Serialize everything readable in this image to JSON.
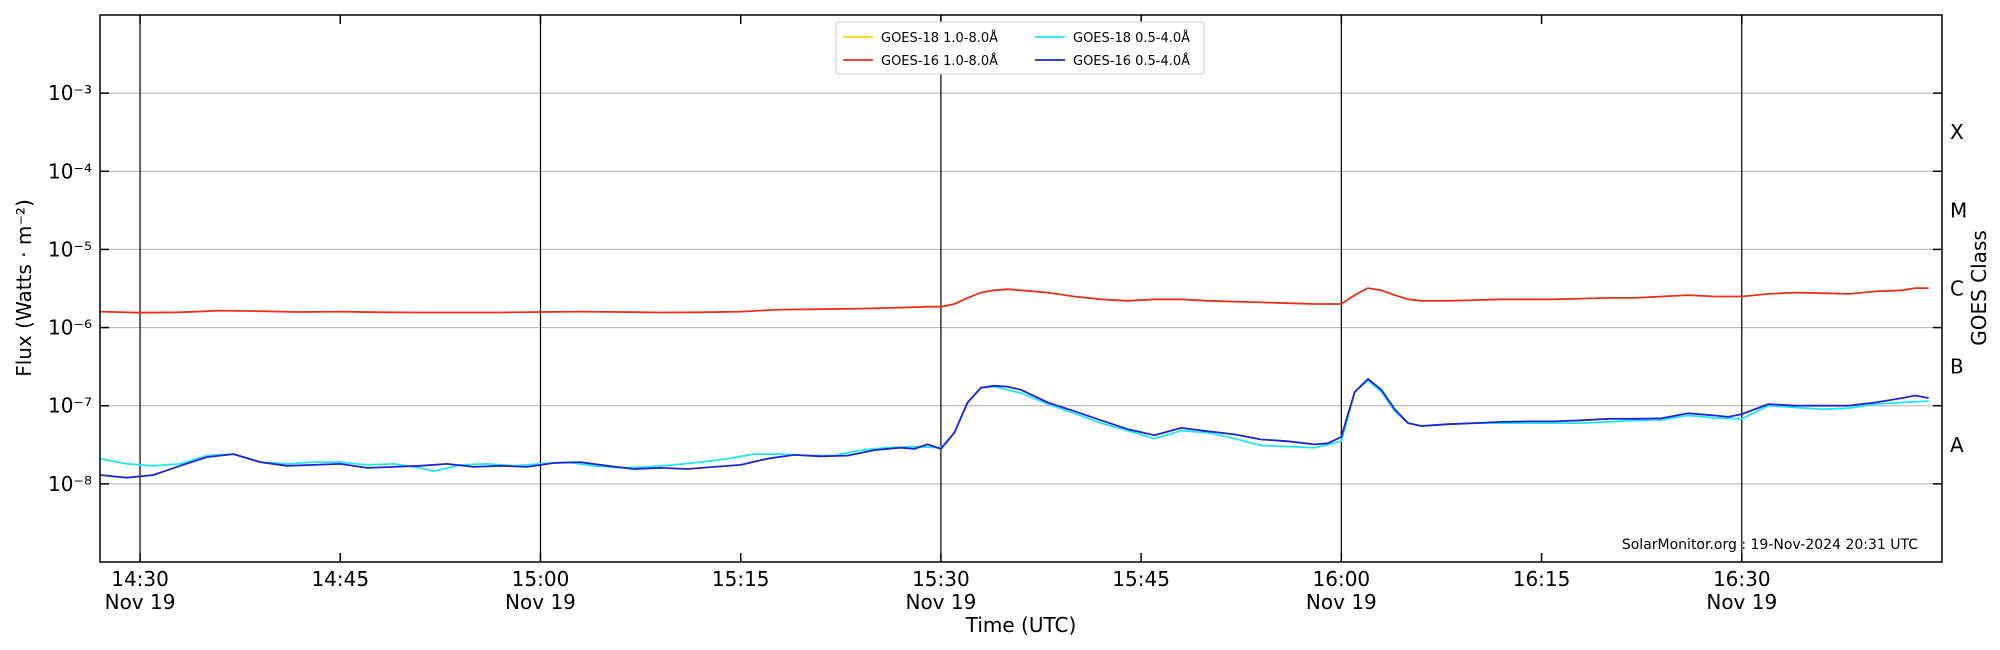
{
  "chart_data": {
    "type": "line",
    "xlabel": "Time (UTC)",
    "ylabel": "Flux (Watts · m⁻²)",
    "y2label": "GOES Class",
    "yscale": "log",
    "ylim": [
      1e-09,
      0.01
    ],
    "xlim_minutes": [
      "14:27",
      "16:45"
    ],
    "x_ticks": [
      {
        "time": "14:30",
        "date": "Nov 19"
      },
      {
        "time": "14:45",
        "date": ""
      },
      {
        "time": "15:00",
        "date": "Nov 19"
      },
      {
        "time": "15:15",
        "date": ""
      },
      {
        "time": "15:30",
        "date": "Nov 19"
      },
      {
        "time": "15:45",
        "date": ""
      },
      {
        "time": "16:00",
        "date": "Nov 19"
      },
      {
        "time": "16:15",
        "date": ""
      },
      {
        "time": "16:30",
        "date": "Nov 19"
      }
    ],
    "y_ticks": [
      {
        "value": 1e-08,
        "label": "10⁻⁸"
      },
      {
        "value": 1e-07,
        "label": "10⁻⁷"
      },
      {
        "value": 1e-06,
        "label": "10⁻⁶"
      },
      {
        "value": 1e-05,
        "label": "10⁻⁵"
      },
      {
        "value": 0.0001,
        "label": "10⁻⁴"
      },
      {
        "value": 0.001,
        "label": "10⁻³"
      }
    ],
    "goes_classes": [
      {
        "label": "A",
        "value": 3.16e-08
      },
      {
        "label": "B",
        "value": 3.16e-07
      },
      {
        "label": "C",
        "value": 3.16e-06
      },
      {
        "label": "M",
        "value": 3.16e-05
      },
      {
        "label": "X",
        "value": 0.000316
      }
    ],
    "vlines": [
      "14:30",
      "15:00",
      "15:30",
      "16:00",
      "16:30"
    ],
    "grid": true,
    "legend_position": "top-center",
    "series": [
      {
        "name": "GOES-18 1.0-8.0Å",
        "color": "#ffd700",
        "x": [],
        "y": []
      },
      {
        "name": "GOES-16 1.0-8.0Å",
        "color": "#e8301c",
        "x": [
          "14:27",
          "14:30",
          "14:33",
          "14:36",
          "14:39",
          "14:42",
          "14:45",
          "14:48",
          "14:51",
          "14:54",
          "14:57",
          "15:00",
          "15:03",
          "15:06",
          "15:09",
          "15:12",
          "15:15",
          "15:18",
          "15:21",
          "15:24",
          "15:27",
          "15:29",
          "15:30",
          "15:31",
          "15:32",
          "15:33",
          "15:34",
          "15:35",
          "15:36",
          "15:38",
          "15:40",
          "15:42",
          "15:44",
          "15:46",
          "15:48",
          "15:50",
          "15:52",
          "15:54",
          "15:56",
          "15:58",
          "16:00",
          "16:01",
          "16:02",
          "16:03",
          "16:04",
          "16:05",
          "16:06",
          "16:08",
          "16:10",
          "16:12",
          "16:14",
          "16:16",
          "16:18",
          "16:20",
          "16:22",
          "16:24",
          "16:26",
          "16:28",
          "16:30",
          "16:32",
          "16:34",
          "16:36",
          "16:38",
          "16:40",
          "16:42",
          "16:43",
          "16:44"
        ],
        "y": [
          1.6e-06,
          1.55e-06,
          1.57e-06,
          1.65e-06,
          1.62e-06,
          1.58e-06,
          1.6e-06,
          1.57e-06,
          1.56e-06,
          1.56e-06,
          1.56e-06,
          1.58e-06,
          1.6e-06,
          1.58e-06,
          1.56e-06,
          1.57e-06,
          1.6e-06,
          1.7e-06,
          1.72e-06,
          1.75e-06,
          1.8e-06,
          1.85e-06,
          1.85e-06,
          2e-06,
          2.4e-06,
          2.8e-06,
          3e-06,
          3.1e-06,
          3e-06,
          2.8e-06,
          2.5e-06,
          2.3e-06,
          2.2e-06,
          2.3e-06,
          2.3e-06,
          2.2e-06,
          2.15e-06,
          2.1e-06,
          2.05e-06,
          2e-06,
          2e-06,
          2.6e-06,
          3.2e-06,
          3e-06,
          2.6e-06,
          2.3e-06,
          2.2e-06,
          2.2e-06,
          2.25e-06,
          2.3e-06,
          2.3e-06,
          2.3e-06,
          2.35e-06,
          2.4e-06,
          2.4e-06,
          2.5e-06,
          2.6e-06,
          2.5e-06,
          2.5e-06,
          2.7e-06,
          2.8e-06,
          2.75e-06,
          2.7e-06,
          2.9e-06,
          3e-06,
          3.2e-06,
          3.2e-06
        ]
      },
      {
        "name": "GOES-18 0.5-4.0Å",
        "color": "#22e6f2",
        "x": [
          "14:27",
          "14:29",
          "14:31",
          "14:33",
          "14:35",
          "14:37",
          "14:39",
          "14:41",
          "14:43",
          "14:45",
          "14:47",
          "14:49",
          "14:51",
          "14:52",
          "14:54",
          "14:56",
          "14:58",
          "15:00",
          "15:02",
          "15:04",
          "15:06",
          "15:08",
          "15:10",
          "15:12",
          "15:14",
          "15:16",
          "15:18",
          "15:20",
          "15:22",
          "15:24",
          "15:26",
          "15:28",
          "15:30",
          "15:31",
          "15:32",
          "15:33",
          "15:34",
          "15:36",
          "15:38",
          "15:40",
          "15:42",
          "15:44",
          "15:46",
          "15:48",
          "15:50",
          "15:52",
          "15:54",
          "15:56",
          "15:58",
          "16:00",
          "16:01",
          "16:02",
          "16:03",
          "16:04",
          "16:05",
          "16:06",
          "16:08",
          "16:10",
          "16:12",
          "16:14",
          "16:16",
          "16:18",
          "16:20",
          "16:22",
          "16:24",
          "16:26",
          "16:28",
          "16:30",
          "16:32",
          "16:34",
          "16:36",
          "16:38",
          "16:40",
          "16:42",
          "16:44"
        ],
        "y": [
          2.1e-08,
          1.8e-08,
          1.7e-08,
          1.8e-08,
          2.3e-08,
          2.4e-08,
          1.9e-08,
          1.8e-08,
          1.9e-08,
          1.9e-08,
          1.75e-08,
          1.8e-08,
          1.6e-08,
          1.45e-08,
          1.75e-08,
          1.8e-08,
          1.7e-08,
          1.8e-08,
          1.9e-08,
          1.7e-08,
          1.6e-08,
          1.65e-08,
          1.75e-08,
          1.9e-08,
          2.1e-08,
          2.4e-08,
          2.4e-08,
          2.3e-08,
          2.3e-08,
          2.7e-08,
          2.9e-08,
          3e-08,
          2.9e-08,
          4.5e-08,
          1.1e-07,
          1.7e-07,
          1.75e-07,
          1.45e-07,
          1.05e-07,
          8e-08,
          6e-08,
          4.8e-08,
          3.8e-08,
          4.8e-08,
          4.5e-08,
          3.8e-08,
          3.1e-08,
          3e-08,
          2.9e-08,
          3.5e-08,
          1.5e-07,
          2.1e-07,
          1.5e-07,
          8.5e-08,
          6e-08,
          5.5e-08,
          5.8e-08,
          6e-08,
          6e-08,
          6e-08,
          6e-08,
          6e-08,
          6.2e-08,
          6.5e-08,
          6.6e-08,
          7.5e-08,
          7e-08,
          6.8e-08,
          1e-07,
          9.5e-08,
          9e-08,
          9.3e-08,
          1.05e-07,
          1.1e-07,
          1.15e-07
        ]
      },
      {
        "name": "GOES-16 0.5-4.0Å",
        "color": "#1f24d6",
        "x": [
          "14:27",
          "14:29",
          "14:31",
          "14:33",
          "14:35",
          "14:37",
          "14:39",
          "14:41",
          "14:43",
          "14:45",
          "14:47",
          "14:49",
          "14:51",
          "14:53",
          "14:55",
          "14:57",
          "14:59",
          "15:01",
          "15:03",
          "15:05",
          "15:07",
          "15:09",
          "15:11",
          "15:13",
          "15:15",
          "15:17",
          "15:19",
          "15:21",
          "15:23",
          "15:25",
          "15:27",
          "15:28",
          "15:29",
          "15:30",
          "15:31",
          "15:32",
          "15:33",
          "15:34",
          "15:35",
          "15:36",
          "15:38",
          "15:40",
          "15:42",
          "15:44",
          "15:46",
          "15:48",
          "15:50",
          "15:52",
          "15:54",
          "15:56",
          "15:58",
          "15:59",
          "16:00",
          "16:01",
          "16:02",
          "16:03",
          "16:04",
          "16:05",
          "16:06",
          "16:08",
          "16:10",
          "16:12",
          "16:14",
          "16:16",
          "16:18",
          "16:20",
          "16:22",
          "16:24",
          "16:26",
          "16:28",
          "16:29",
          "16:30",
          "16:32",
          "16:34",
          "16:36",
          "16:38",
          "16:40",
          "16:42",
          "16:43",
          "16:44"
        ],
        "y": [
          1.3e-08,
          1.2e-08,
          1.3e-08,
          1.7e-08,
          2.2e-08,
          2.4e-08,
          1.9e-08,
          1.7e-08,
          1.75e-08,
          1.8e-08,
          1.6e-08,
          1.65e-08,
          1.7e-08,
          1.8e-08,
          1.65e-08,
          1.7e-08,
          1.65e-08,
          1.85e-08,
          1.9e-08,
          1.7e-08,
          1.55e-08,
          1.6e-08,
          1.55e-08,
          1.65e-08,
          1.75e-08,
          2.1e-08,
          2.35e-08,
          2.25e-08,
          2.3e-08,
          2.7e-08,
          2.9e-08,
          2.8e-08,
          3.2e-08,
          2.8e-08,
          4.5e-08,
          1.1e-07,
          1.7e-07,
          1.8e-07,
          1.75e-07,
          1.6e-07,
          1.1e-07,
          8.5e-08,
          6.5e-08,
          5e-08,
          4.2e-08,
          5.2e-08,
          4.7e-08,
          4.3e-08,
          3.7e-08,
          3.5e-08,
          3.2e-08,
          3.3e-08,
          4e-08,
          1.5e-07,
          2.2e-07,
          1.6e-07,
          9e-08,
          6e-08,
          5.5e-08,
          5.8e-08,
          6e-08,
          6.2e-08,
          6.3e-08,
          6.3e-08,
          6.5e-08,
          6.8e-08,
          6.8e-08,
          6.9e-08,
          8e-08,
          7.5e-08,
          7.2e-08,
          7.8e-08,
          1.05e-07,
          1e-07,
          1e-07,
          1e-07,
          1.1e-07,
          1.25e-07,
          1.35e-07,
          1.25e-07
        ]
      }
    ]
  },
  "credit": "SolarMonitor.org : 19-Nov-2024 20:31 UTC"
}
